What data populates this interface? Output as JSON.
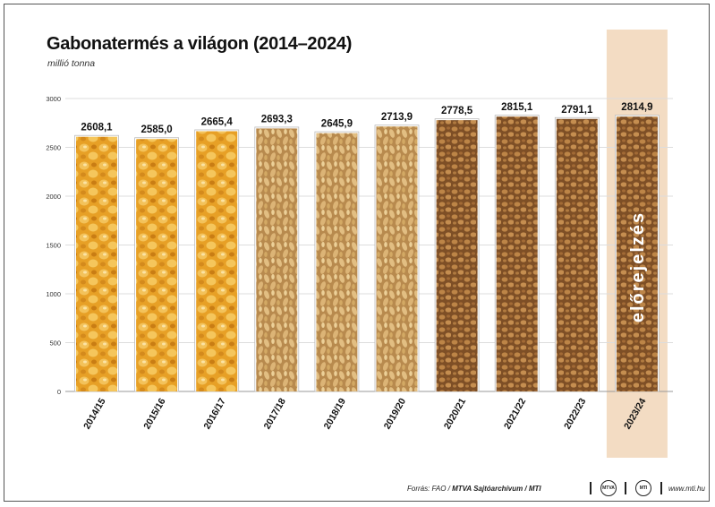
{
  "title": "Gabonatermés a világon (2014–2024)",
  "subtitle": "millió tonna",
  "chart_data": {
    "type": "bar",
    "categories": [
      "2014/15",
      "2015/16",
      "2016/17",
      "2017/18",
      "2018/19",
      "2019/20",
      "2020/21",
      "2021/22",
      "2022/23",
      "2023/24"
    ],
    "values": [
      2608.1,
      2585.0,
      2665.4,
      2693.3,
      2645.9,
      2713.9,
      2778.5,
      2815.1,
      2791.1,
      2814.9
    ],
    "value_labels": [
      "2608,1",
      "2585,0",
      "2665,4",
      "2693,3",
      "2645,9",
      "2713,9",
      "2778,5",
      "2815,1",
      "2791,1",
      "2814,9"
    ],
    "grain_types": [
      "corn",
      "corn",
      "corn",
      "barley",
      "barley",
      "barley",
      "wheat",
      "wheat",
      "wheat",
      "wheat"
    ],
    "ylim": [
      0,
      3000
    ],
    "yticks": [
      0,
      500,
      1000,
      1500,
      2000,
      2500,
      3000
    ],
    "grid": true,
    "forecast_index": 9,
    "forecast_label": "előrejelzés"
  },
  "colors": {
    "corn": "#e8a52a",
    "barley": "#d9b274",
    "wheat": "#a8723a",
    "forecast_bg": "#f3dcc3",
    "grid": "#dddddd"
  },
  "footer": {
    "source_prefix": "Forrás: FAO / ",
    "source_bold": "MTVA Sajtóarchívum / MTI",
    "logo1": "MTVA",
    "logo2": "MTI",
    "url": "www.mti.hu"
  }
}
